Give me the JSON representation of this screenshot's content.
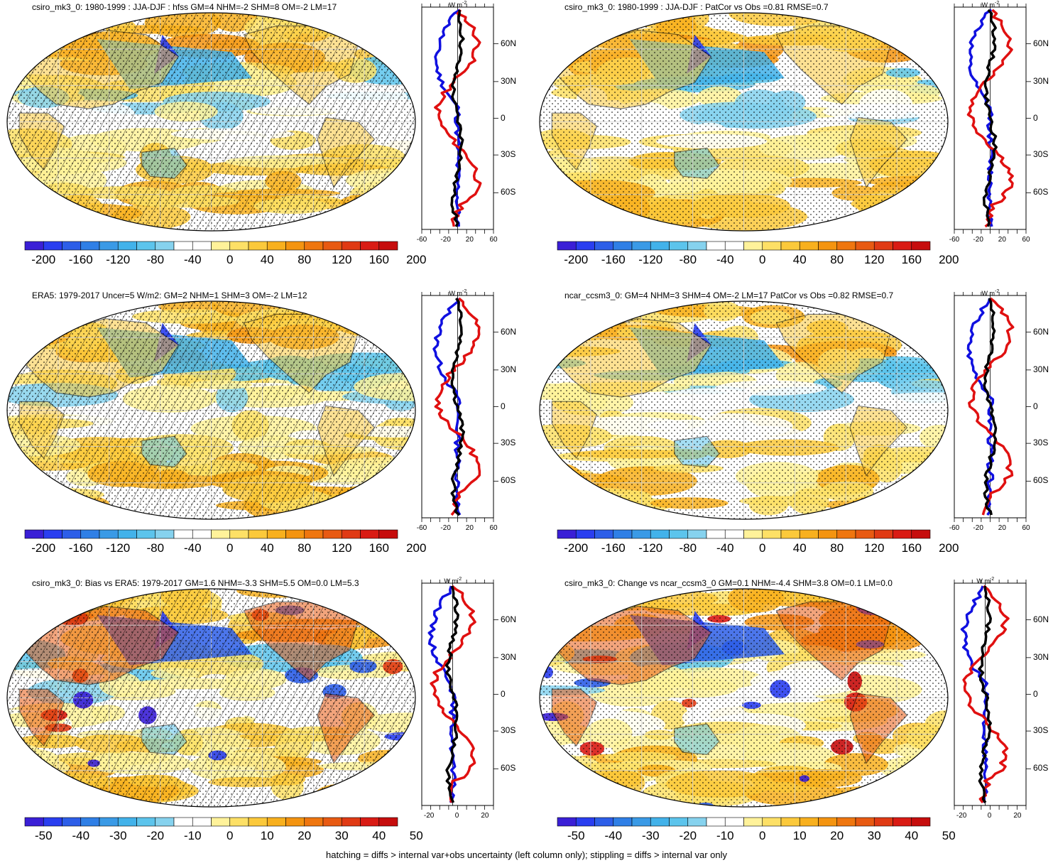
{
  "panels": [
    {
      "id": "p1",
      "title": "csiro_mk3_0: 1980-1999 : JJA-DJF : hfss GM=4 NHM=-2 SHM=8 OM=-2 LM=17",
      "scale": "wide",
      "variant": 0
    },
    {
      "id": "p2",
      "title": "csiro_mk3_0: 1980-1999 : JJA-DJF : PatCor vs Obs =0.81 RMSE=0.7",
      "scale": "wide",
      "variant": 1
    },
    {
      "id": "p3",
      "title": "ERA5: 1979-2017 Uncer=5 W/m2: GM=2 NHM=1 SHM=3 OM=-2 LM=12",
      "scale": "wide",
      "variant": 2
    },
    {
      "id": "p4",
      "title": "ncar_ccsm3_0: GM=4 NHM=3 SHM=4 OM=-2 LM=17 PatCor vs Obs =0.82 RMSE=0.7",
      "scale": "wide",
      "variant": 3
    },
    {
      "id": "p5",
      "title": "csiro_mk3_0: Bias vs ERA5: 1979-2017 GM=1.6 NHM=-3.3 SHM=5.5 OM=0.0 LM=5.3",
      "scale": "narrow",
      "variant": 4
    },
    {
      "id": "p6",
      "title": "csiro_mk3_0: Change vs ncar_ccsm3_0 GM=0.1 NHM=-4.4 SHM=3.8 OM=0.1 LM=0.0",
      "scale": "narrow",
      "variant": 5
    }
  ],
  "colorbars": {
    "wide": {
      "labels": [
        "-200",
        "-160",
        "-120",
        "-80",
        "-40",
        "0",
        "40",
        "80",
        "120",
        "160",
        "200"
      ]
    },
    "narrow": {
      "labels": [
        "-50",
        "-40",
        "-30",
        "-20",
        "-10",
        "0",
        "10",
        "20",
        "30",
        "40",
        "50"
      ]
    }
  },
  "palette": [
    "#3a1fd6",
    "#2a3ef0",
    "#2d5ee8",
    "#2f7fe6",
    "#3a9ae6",
    "#42b2ea",
    "#5cc4ec",
    "#86d2ee",
    "#ffffff",
    "#ffffff",
    "#fff29a",
    "#fde066",
    "#fbc93b",
    "#f8b01e",
    "#f49410",
    "#ef760f",
    "#e85a12",
    "#e03a14",
    "#d91b14",
    "#c60d0d"
  ],
  "profiles": {
    "lat_labels": [
      "60N",
      "30N",
      "0",
      "30S",
      "60S"
    ],
    "xticks_wide": [
      "-60",
      "-20",
      "20",
      "60"
    ],
    "xticks_narrow": [
      "-20",
      "0",
      "20"
    ],
    "units": "W m",
    "units_exp": "-2",
    "colors": {
      "model": "#1010e0",
      "obs": "#e01010",
      "diff": "#000000"
    }
  },
  "footer": "hatching = diffs > internal var+obs uncertainty (left column only); stippling = diffs > internal var only"
}
